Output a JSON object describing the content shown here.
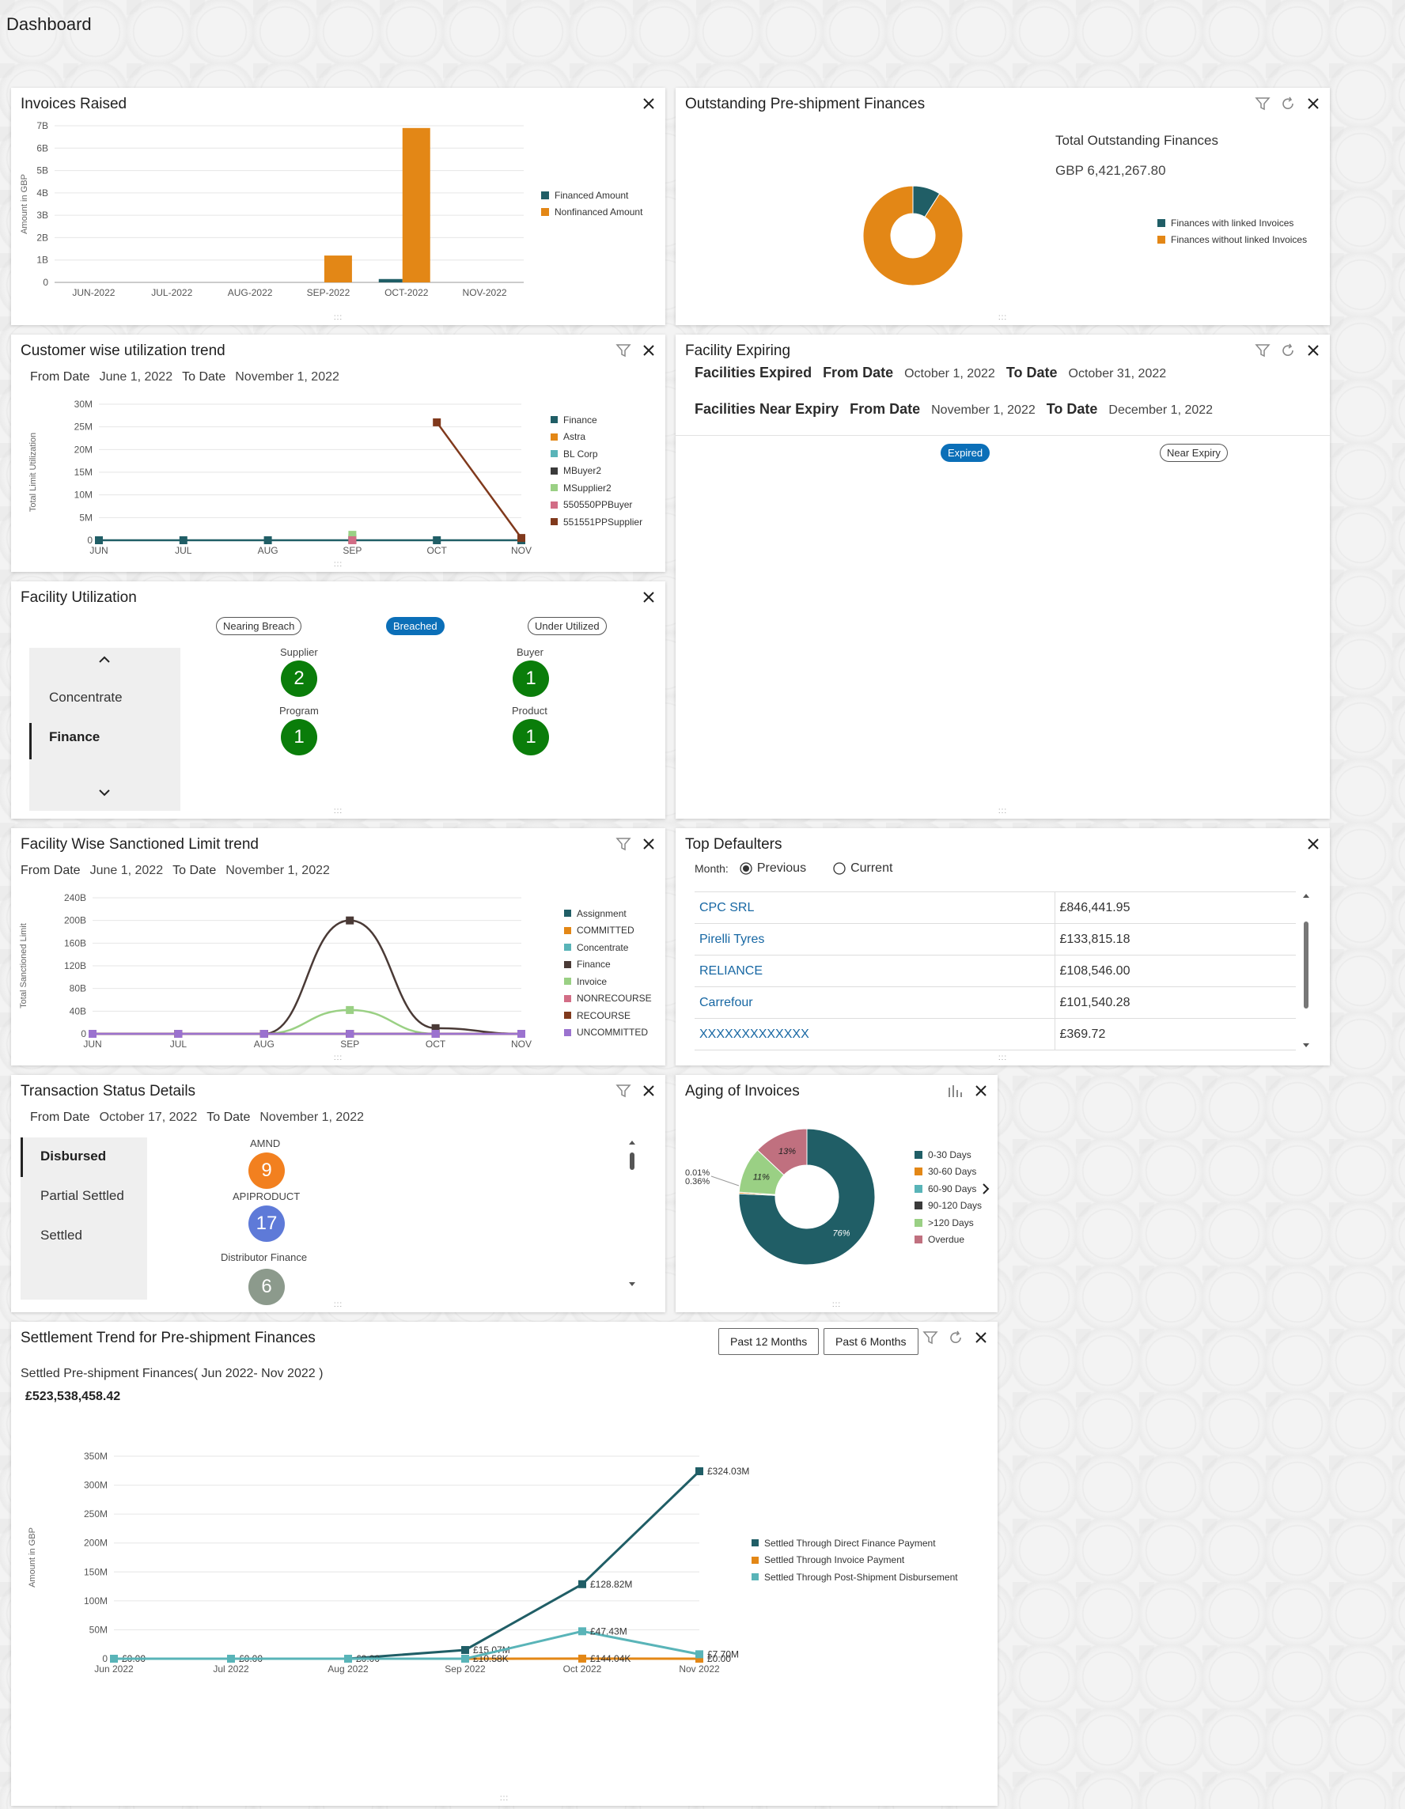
{
  "page": {
    "title": "Dashboard"
  },
  "colors": {
    "teal": "#205e66",
    "orange": "#e38716",
    "brown": "#80391c",
    "green": "#0a7d0a",
    "blue": "#0b6fb8"
  },
  "invoices_raised": {
    "title": "Invoices Raised",
    "chart_data": {
      "type": "bar",
      "categories": [
        "JUN-2022",
        "JUL-2022",
        "AUG-2022",
        "SEP-2022",
        "OCT-2022",
        "NOV-2022"
      ],
      "series": [
        {
          "name": "Financed Amount",
          "color": "#205e66",
          "values": [
            0,
            0,
            0,
            0,
            0.15,
            0
          ]
        },
        {
          "name": "Nonfinanced Amount",
          "color": "#e38716",
          "values": [
            0,
            0,
            0,
            1.2,
            6.9,
            0
          ]
        }
      ],
      "ylabel": "Amount in GBP",
      "yticks": [
        "0",
        "1B",
        "2B",
        "3B",
        "4B",
        "5B",
        "6B",
        "7B"
      ],
      "ylim": [
        0,
        7
      ],
      "legend": "right"
    }
  },
  "outstanding": {
    "title": "Outstanding Pre-shipment Finances",
    "total_label": "Total Outstanding Finances",
    "total_value": "GBP 6,421,267.80",
    "chart_data": {
      "type": "pie",
      "donut": true,
      "slices": [
        {
          "name": "Finances with linked Invoices",
          "value": 9,
          "color": "#205e66"
        },
        {
          "name": "Finances without linked Invoices",
          "value": 91,
          "color": "#e38716"
        }
      ],
      "legend": "right"
    }
  },
  "customer_trend": {
    "title": "Customer wise utilization trend",
    "from_label": "From Date",
    "from_value": "June 1, 2022",
    "to_label": "To Date",
    "to_value": "November 1, 2022",
    "chart_data": {
      "type": "line",
      "categories": [
        "JUN",
        "JUL",
        "AUG",
        "SEP",
        "OCT",
        "NOV"
      ],
      "ylabel": "Total Limit Utilization",
      "yticks": [
        "0",
        "5M",
        "10M",
        "15M",
        "20M",
        "25M",
        "30M"
      ],
      "ylim": [
        0,
        30
      ],
      "series": [
        {
          "name": "Finance",
          "color": "#205e66",
          "values": [
            0,
            0,
            0,
            0,
            0,
            0
          ]
        },
        {
          "name": "Astra",
          "color": "#e38716",
          "values": [
            null,
            null,
            null,
            0,
            null,
            null
          ]
        },
        {
          "name": "BL Corp",
          "color": "#59b4b8",
          "values": [
            null,
            null,
            null,
            0.5,
            null,
            null
          ]
        },
        {
          "name": "MBuyer2",
          "color": "#3a3a3a",
          "values": [
            null,
            null,
            null,
            0.2,
            null,
            null
          ]
        },
        {
          "name": "MSupplier2",
          "color": "#9ad084",
          "values": [
            null,
            null,
            null,
            1.2,
            null,
            null
          ]
        },
        {
          "name": "550550PPBuyer",
          "color": "#d26d86",
          "values": [
            null,
            null,
            null,
            0,
            null,
            null
          ]
        },
        {
          "name": "551551PPSupplier",
          "color": "#80391c",
          "values": [
            null,
            null,
            null,
            null,
            26,
            0.5
          ]
        }
      ],
      "legend": "right"
    }
  },
  "facility_expiring": {
    "title": "Facility Expiring",
    "expired_label": "Facilities Expired",
    "near_label": "Facilities Near Expiry",
    "from_label": "From Date",
    "to_label": "To Date",
    "expired_from": "October 1, 2022",
    "expired_to": "October 31, 2022",
    "near_from": "November 1, 2022",
    "near_to": "December 1, 2022",
    "tab_expired": "Expired",
    "tab_near": "Near Expiry"
  },
  "facility_utilization": {
    "title": "Facility Utilization",
    "tabs": [
      "Nearing Breach",
      "Breached",
      "Under Utilized"
    ],
    "menu": [
      "Concentrate",
      "Finance"
    ],
    "counts": [
      {
        "label": "Supplier",
        "value": "2"
      },
      {
        "label": "Buyer",
        "value": "1"
      },
      {
        "label": "Program",
        "value": "1"
      },
      {
        "label": "Product",
        "value": "1"
      }
    ]
  },
  "sanctioned_trend": {
    "title": "Facility Wise Sanctioned Limit trend",
    "from_label": "From Date",
    "from_value": "June 1, 2022",
    "to_label": "To Date",
    "to_value": "November 1, 2022",
    "chart_data": {
      "type": "line",
      "categories": [
        "JUN",
        "JUL",
        "AUG",
        "SEP",
        "OCT",
        "NOV"
      ],
      "ylabel": "Total Sanctioned Limit",
      "yticks": [
        "0",
        "40B",
        "80B",
        "120B",
        "160B",
        "200B",
        "240B"
      ],
      "ylim": [
        0,
        240
      ],
      "series": [
        {
          "name": "Assignment",
          "color": "#205e66",
          "values": [
            0,
            0,
            0,
            0,
            0,
            0
          ]
        },
        {
          "name": "COMMITTED",
          "color": "#e38716",
          "values": [
            0,
            0,
            0,
            0,
            0,
            0
          ]
        },
        {
          "name": "Concentrate",
          "color": "#59b4b8",
          "values": [
            0,
            0,
            0,
            0,
            0,
            0
          ]
        },
        {
          "name": "Finance",
          "color": "#4a3a36",
          "values": [
            0,
            0,
            0,
            200,
            10,
            0
          ]
        },
        {
          "name": "Invoice",
          "color": "#9ad084",
          "values": [
            0,
            0,
            0,
            42,
            0,
            0
          ]
        },
        {
          "name": "NONRECOURSE",
          "color": "#d26d86",
          "values": [
            0,
            0,
            0,
            0,
            0,
            0
          ]
        },
        {
          "name": "RECOURSE",
          "color": "#80391c",
          "values": [
            0,
            0,
            0,
            0,
            0,
            0
          ]
        },
        {
          "name": "UNCOMMITTED",
          "color": "#9b72cf",
          "values": [
            0,
            0,
            0,
            0,
            0,
            0
          ]
        }
      ],
      "legend": "right"
    }
  },
  "top_defaulters": {
    "title": "Top Defaulters",
    "month_label": "Month:",
    "opt_previous": "Previous",
    "opt_current": "Current",
    "rows": [
      {
        "name": "CPC SRL",
        "amount": "£846,441.95"
      },
      {
        "name": "Pirelli Tyres",
        "amount": "£133,815.18"
      },
      {
        "name": "RELIANCE",
        "amount": "£108,546.00"
      },
      {
        "name": "Carrefour",
        "amount": "£101,540.28"
      },
      {
        "name": "XXXXXXXXXXXXX",
        "amount": "£369.72"
      }
    ]
  },
  "transaction_status": {
    "title": "Transaction Status Details",
    "from_label": "From Date",
    "from_value": "October 17, 2022",
    "to_label": "To Date",
    "to_value": "November 1, 2022",
    "menu": [
      "Disbursed",
      "Partial Settled",
      "Settled"
    ],
    "items": [
      {
        "label": "AMND",
        "value": "9",
        "color": "#f2801f"
      },
      {
        "label": "APIPRODUCT",
        "value": "17",
        "color": "#5e7ad8"
      },
      {
        "label": "Distributor Finance",
        "value": "6",
        "color": "#8c9a8c"
      }
    ]
  },
  "aging": {
    "title": "Aging of Invoices",
    "chart_data": {
      "type": "pie",
      "donut": true,
      "slices": [
        {
          "name": "0-30 Days",
          "value": 76,
          "label": "76%",
          "color": "#205e66"
        },
        {
          "name": "30-60 Days",
          "value": 0.36,
          "label": "0.36%",
          "color": "#e38716"
        },
        {
          "name": "60-90 Days",
          "value": 0.01,
          "label": "0.01%",
          "color": "#59b4b8"
        },
        {
          "name": "90-120 Days",
          "value": 0.01,
          "label": "",
          "color": "#3a3a3a"
        },
        {
          "name": ">120 Days",
          "value": 11,
          "label": "11%",
          "color": "#9ad084"
        },
        {
          "name": "Overdue",
          "value": 13,
          "label": "13%",
          "color": "#c0707f"
        }
      ],
      "legend": "right"
    }
  },
  "settlement": {
    "title": "Settlement Trend for Pre-shipment Finances",
    "btn_12": "Past 12 Months",
    "btn_6": "Past 6 Months",
    "subtitle": "Settled Pre-shipment Finances( Jun 2022- Nov 2022 )",
    "total": "£523,538,458.42",
    "chart_data": {
      "type": "line",
      "categories": [
        "Jun 2022",
        "Jul 2022",
        "Aug 2022",
        "Sep 2022",
        "Oct 2022",
        "Nov 2022"
      ],
      "ylabel": "Amount in GBP",
      "yticks": [
        "0",
        "50M",
        "100M",
        "150M",
        "200M",
        "250M",
        "300M",
        "350M"
      ],
      "ylim": [
        0,
        350
      ],
      "series": [
        {
          "name": "Settled Through Direct Finance Payment",
          "color": "#205e66",
          "values": [
            0,
            0,
            0,
            15.07,
            128.82,
            324.03
          ],
          "labels": [
            "£0.00",
            "£0.00",
            "£0.00",
            "£15.07M",
            "£128.82M",
            "£324.03M"
          ]
        },
        {
          "name": "Settled Through Invoice Payment",
          "color": "#e38716",
          "values": [
            0,
            0,
            0,
            0.01,
            0.14,
            0
          ],
          "labels": [
            "",
            "",
            "",
            "£10.58K",
            "£144.04K",
            "£0.00"
          ]
        },
        {
          "name": "Settled Through Post-Shipment Disbursement",
          "color": "#59b4b8",
          "values": [
            0,
            0,
            0,
            0,
            47.43,
            7.7
          ],
          "labels": [
            "",
            "",
            "",
            "",
            "£47.43M",
            "£7.70M"
          ]
        }
      ],
      "legend": "right"
    }
  }
}
